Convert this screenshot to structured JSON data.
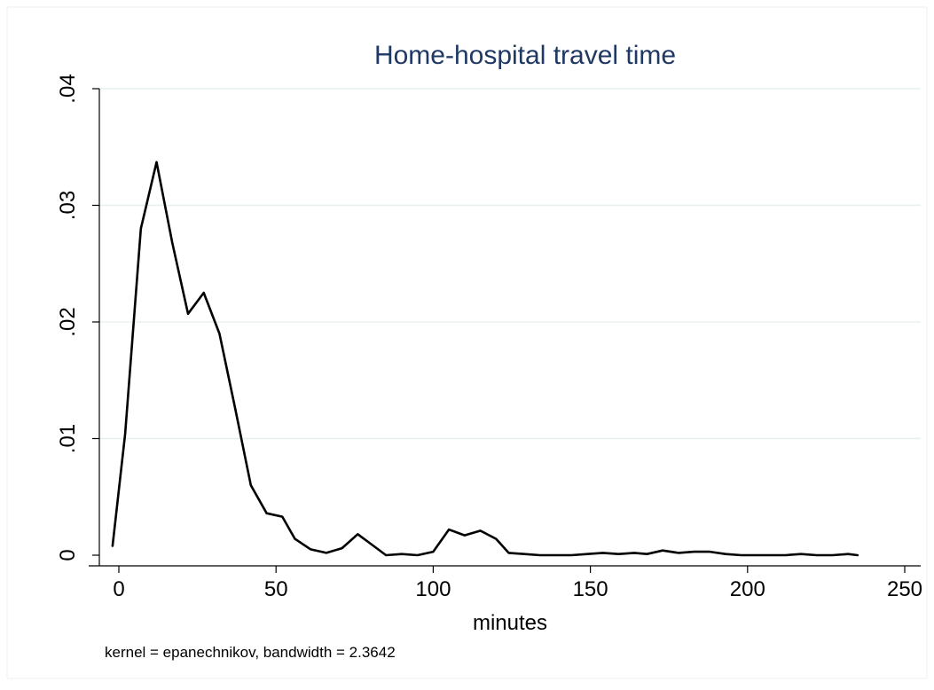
{
  "chart_data": {
    "type": "line",
    "title": "Home-hospital travel time",
    "xlabel": "minutes",
    "ylabel": "",
    "note": "kernel = epanechnikov, bandwidth = 2.3642",
    "xlim": [
      -5,
      250
    ],
    "ylim": [
      0,
      0.04
    ],
    "xticks": [
      0,
      50,
      100,
      150,
      200,
      250
    ],
    "xtick_labels": [
      "0",
      "50",
      "100",
      "150",
      "200",
      "250"
    ],
    "yticks": [
      0,
      0.01,
      0.02,
      0.03,
      0.04
    ],
    "ytick_labels": [
      "0",
      ".01",
      ".02",
      ".03",
      ".04"
    ],
    "grid": true,
    "legend": "none",
    "colors": {
      "line": "#000000",
      "grid": "#e8f0ef",
      "axis": "#000000",
      "title": "#1f3864"
    },
    "series": [
      {
        "x": [
          -2,
          2,
          7,
          12,
          17,
          22,
          27,
          32,
          37,
          42,
          47,
          52,
          56,
          61,
          66,
          71,
          76,
          81,
          85,
          90,
          95,
          100,
          105,
          110,
          115,
          120,
          124,
          129,
          134,
          139,
          144,
          149,
          154,
          159,
          164,
          168,
          173,
          178,
          183,
          188,
          193,
          198,
          203,
          207,
          212,
          217,
          222,
          227,
          232,
          235
        ],
        "y": [
          0.0008,
          0.0104,
          0.028,
          0.0337,
          0.0268,
          0.0207,
          0.0225,
          0.019,
          0.0126,
          0.006,
          0.0036,
          0.0033,
          0.0014,
          0.0005,
          0.0002,
          0.0006,
          0.0018,
          0.0008,
          0.0,
          0.0001,
          0.0,
          0.0003,
          0.0022,
          0.0017,
          0.0021,
          0.0014,
          0.0002,
          0.0001,
          0.0,
          0.0,
          0.0,
          0.0001,
          0.0002,
          0.0001,
          0.0002,
          0.0001,
          0.0004,
          0.0002,
          0.0003,
          0.0003,
          0.0001,
          0.0,
          0.0,
          0.0,
          0.0,
          0.0001,
          0.0,
          0.0,
          0.0001,
          0.0
        ]
      }
    ]
  }
}
